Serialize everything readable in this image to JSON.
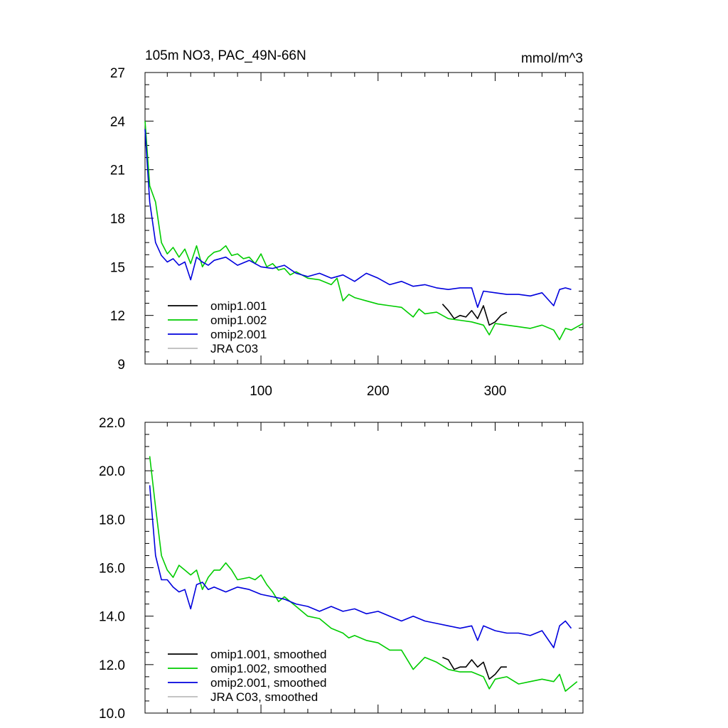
{
  "chart_data": [
    {
      "type": "line",
      "title": "105m NO3, PAC_49N-66N",
      "units": "mmol/m^3",
      "xlim": [
        1,
        375
      ],
      "ylim": [
        9,
        27
      ],
      "x_ticks": [
        100,
        200,
        300
      ],
      "y_ticks": [
        9,
        12,
        15,
        18,
        21,
        24,
        27
      ],
      "y_tick_labels": [
        "9",
        "12",
        "15",
        "18",
        "21",
        "24",
        "27"
      ],
      "legend_position": "bottom-left",
      "series": [
        {
          "name": "omip1.001",
          "color": "#000000",
          "x": [
            255,
            260,
            265,
            270,
            275,
            280,
            285,
            290,
            295,
            300,
            305,
            310
          ],
          "y": [
            12.7,
            12.3,
            11.8,
            12.0,
            11.9,
            12.3,
            11.8,
            12.6,
            11.4,
            11.6,
            12.0,
            12.2
          ]
        },
        {
          "name": "omip1.002",
          "color": "#00cc00",
          "x": [
            1,
            5,
            10,
            15,
            20,
            25,
            30,
            35,
            40,
            45,
            50,
            55,
            60,
            65,
            70,
            75,
            80,
            85,
            90,
            95,
            100,
            105,
            110,
            115,
            120,
            125,
            130,
            140,
            150,
            160,
            165,
            170,
            175,
            180,
            190,
            200,
            210,
            220,
            230,
            235,
            240,
            250,
            260,
            270,
            280,
            290,
            295,
            300,
            310,
            320,
            330,
            340,
            350,
            355,
            360,
            365,
            370,
            375
          ],
          "y": [
            24.0,
            20.0,
            19.0,
            16.5,
            15.8,
            16.2,
            15.6,
            16.1,
            15.2,
            16.3,
            15.0,
            15.6,
            15.9,
            16.0,
            16.3,
            15.7,
            15.8,
            15.5,
            15.6,
            15.2,
            15.8,
            15.0,
            15.2,
            14.8,
            14.9,
            14.5,
            14.7,
            14.3,
            14.2,
            13.9,
            14.3,
            12.9,
            13.3,
            13.1,
            12.9,
            12.7,
            12.6,
            12.5,
            11.9,
            12.4,
            12.1,
            12.2,
            11.8,
            11.7,
            11.6,
            11.4,
            10.8,
            11.5,
            11.4,
            11.3,
            11.2,
            11.4,
            11.1,
            10.5,
            11.2,
            11.1,
            11.3,
            11.5
          ]
        },
        {
          "name": "omip2.001",
          "color": "#0000dd",
          "x": [
            1,
            5,
            10,
            15,
            20,
            25,
            30,
            35,
            40,
            45,
            50,
            55,
            60,
            70,
            80,
            90,
            100,
            110,
            120,
            130,
            140,
            150,
            160,
            170,
            180,
            190,
            200,
            210,
            220,
            230,
            240,
            250,
            260,
            270,
            280,
            285,
            290,
            300,
            310,
            320,
            330,
            340,
            350,
            355,
            360,
            365
          ],
          "y": [
            23.5,
            19.0,
            16.5,
            15.7,
            15.3,
            15.5,
            15.1,
            15.3,
            14.2,
            15.6,
            15.3,
            15.1,
            15.4,
            15.6,
            15.1,
            15.4,
            15.0,
            14.9,
            15.1,
            14.6,
            14.4,
            14.6,
            14.3,
            14.5,
            14.1,
            14.6,
            14.3,
            13.9,
            14.1,
            13.8,
            13.9,
            13.7,
            13.6,
            13.7,
            13.7,
            12.5,
            13.5,
            13.4,
            13.3,
            13.3,
            13.2,
            13.4,
            12.6,
            13.6,
            13.7,
            13.6
          ]
        },
        {
          "name": "JRA C03",
          "color": "#bbbbbb",
          "x": [],
          "y": []
        }
      ]
    },
    {
      "type": "line",
      "title": "",
      "xlim": [
        1,
        375
      ],
      "ylim": [
        10.0,
        22.0
      ],
      "x_ticks": [
        100,
        200,
        300
      ],
      "y_ticks": [
        10,
        12,
        14,
        16,
        18,
        20,
        22
      ],
      "y_tick_labels": [
        "10.0",
        "12.0",
        "14.0",
        "16.0",
        "18.0",
        "20.0",
        "22.0"
      ],
      "legend_position": "bottom-left",
      "series": [
        {
          "name": "omip1.001, smoothed",
          "color": "#000000",
          "x": [
            255,
            260,
            265,
            270,
            275,
            280,
            285,
            290,
            295,
            300,
            305,
            310
          ],
          "y": [
            12.3,
            12.2,
            11.8,
            11.9,
            11.9,
            12.2,
            11.9,
            12.1,
            11.4,
            11.6,
            11.9,
            11.9
          ]
        },
        {
          "name": "omip1.002, smoothed",
          "color": "#00cc00",
          "x": [
            5,
            10,
            15,
            20,
            25,
            30,
            35,
            40,
            45,
            50,
            55,
            60,
            65,
            70,
            75,
            80,
            90,
            95,
            100,
            105,
            110,
            115,
            120,
            130,
            140,
            150,
            160,
            170,
            175,
            180,
            190,
            200,
            210,
            220,
            230,
            240,
            250,
            260,
            270,
            280,
            290,
            295,
            300,
            310,
            320,
            330,
            340,
            350,
            355,
            360,
            365,
            370
          ],
          "y": [
            20.6,
            18.5,
            16.5,
            15.9,
            15.6,
            16.1,
            15.9,
            15.7,
            15.9,
            15.1,
            15.6,
            15.9,
            15.9,
            16.2,
            15.9,
            15.5,
            15.6,
            15.5,
            15.7,
            15.3,
            15.0,
            14.6,
            14.8,
            14.4,
            14.0,
            13.9,
            13.5,
            13.3,
            13.1,
            13.2,
            13.0,
            12.9,
            12.6,
            12.6,
            11.8,
            12.3,
            12.1,
            11.8,
            11.7,
            11.7,
            11.5,
            11.0,
            11.4,
            11.5,
            11.2,
            11.3,
            11.4,
            11.3,
            11.6,
            10.9,
            11.1,
            11.3
          ]
        },
        {
          "name": "omip2.001, smoothed",
          "color": "#0000dd",
          "x": [
            5,
            10,
            15,
            20,
            25,
            30,
            35,
            40,
            45,
            50,
            55,
            60,
            70,
            80,
            90,
            100,
            110,
            120,
            130,
            140,
            150,
            160,
            170,
            180,
            190,
            200,
            210,
            220,
            230,
            240,
            250,
            260,
            270,
            280,
            285,
            290,
            300,
            310,
            320,
            330,
            340,
            350,
            355,
            360,
            365
          ],
          "y": [
            19.4,
            16.5,
            15.5,
            15.5,
            15.2,
            15.0,
            15.1,
            14.3,
            15.3,
            15.4,
            15.1,
            15.2,
            15.0,
            15.2,
            15.1,
            14.9,
            14.8,
            14.7,
            14.5,
            14.4,
            14.2,
            14.4,
            14.2,
            14.3,
            14.1,
            14.2,
            14.0,
            13.8,
            14.0,
            13.8,
            13.7,
            13.6,
            13.5,
            13.6,
            13.0,
            13.6,
            13.4,
            13.3,
            13.3,
            13.2,
            13.4,
            12.7,
            13.6,
            13.8,
            13.5
          ]
        },
        {
          "name": "JRA C03, smoothed",
          "color": "#bbbbbb",
          "x": [],
          "y": []
        }
      ]
    }
  ]
}
